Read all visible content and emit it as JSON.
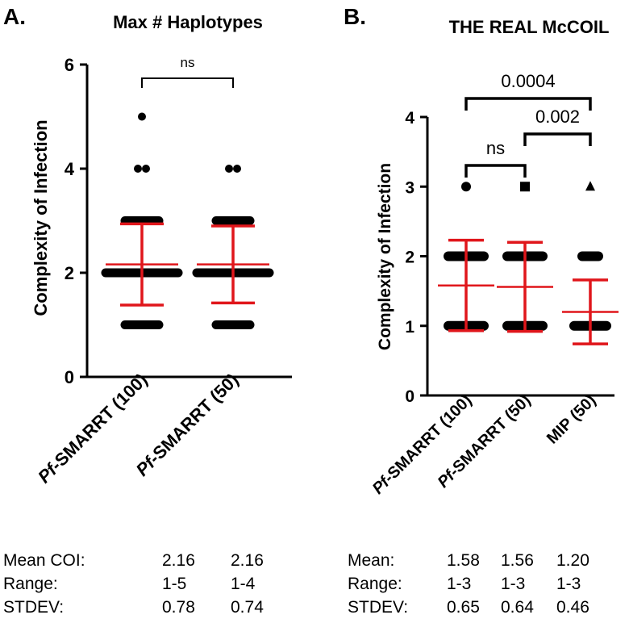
{
  "chart_data": [
    {
      "type": "scatter",
      "panel_label": "A.",
      "title": "Max # Haplotypes",
      "ylabel": "Complexity of Infection",
      "ylim": [
        0,
        6
      ],
      "yticks": [
        "0",
        "2",
        "4",
        "6"
      ],
      "categories": [
        "Pf-SMARRT (100)",
        "Pf-SMARRT (50)"
      ],
      "category_labels": [
        {
          "italic": "Pf",
          "rest": "-SMARRT (100)"
        },
        {
          "italic": "Pf",
          "rest": "-SMARRT (50)"
        }
      ],
      "points": [
        [
          1,
          2,
          3,
          4,
          5
        ],
        [
          1,
          2,
          3,
          4
        ]
      ],
      "mean": [
        2.16,
        2.16
      ],
      "sd": [
        0.78,
        0.74
      ],
      "comparisons": [
        {
          "from": 0,
          "to": 1,
          "label": "ns"
        }
      ],
      "summary": {
        "rows": [
          {
            "label": "Mean COI:",
            "values": [
              "2.16",
              "2.16"
            ]
          },
          {
            "label": "Range:",
            "values": [
              "1-5",
              "1-4"
            ]
          },
          {
            "label": "STDEV:",
            "values": [
              "0.78",
              "0.74"
            ]
          }
        ]
      }
    },
    {
      "type": "scatter",
      "panel_label": "B.",
      "title": "THE REAL McCOIL",
      "ylabel": "Complexity of Infection",
      "ylim": [
        0,
        4
      ],
      "yticks": [
        "0",
        "1",
        "2",
        "3",
        "4"
      ],
      "categories": [
        "Pf-SMARRT (100)",
        "Pf-SMARRT (50)",
        "MIP (50)"
      ],
      "category_labels": [
        {
          "italic": "Pf",
          "rest": "-SMARRT (100)"
        },
        {
          "italic": "Pf",
          "rest": "-SMARRT (50)"
        },
        {
          "italic": "",
          "rest": "MIP (50)"
        }
      ],
      "markers": [
        "circle",
        "square",
        "triangle"
      ],
      "points": [
        [
          1,
          2,
          3
        ],
        [
          1,
          2,
          3
        ],
        [
          1,
          2,
          3
        ]
      ],
      "mean": [
        1.58,
        1.56,
        1.2
      ],
      "sd": [
        0.65,
        0.64,
        0.46
      ],
      "comparisons": [
        {
          "from": 0,
          "to": 1,
          "label": "ns"
        },
        {
          "from": 1,
          "to": 2,
          "label": "0.002"
        },
        {
          "from": 0,
          "to": 2,
          "label": "0.0004"
        }
      ],
      "summary": {
        "rows": [
          {
            "label": "Mean:",
            "values": [
              "1.58",
              "1.56",
              "1.20"
            ]
          },
          {
            "label": "Range:",
            "values": [
              "1-3",
              "1-3",
              "1-3"
            ]
          },
          {
            "label": "STDEV:",
            "values": [
              "0.65",
              "0.64",
              "0.46"
            ]
          }
        ]
      }
    }
  ]
}
